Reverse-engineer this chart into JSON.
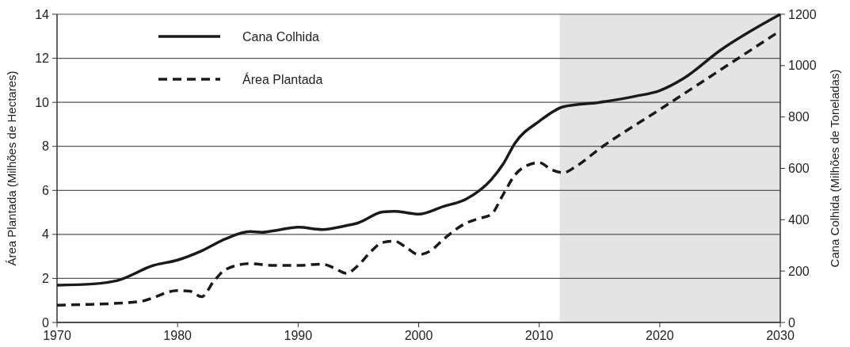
{
  "chart_data": {
    "type": "line",
    "xlabel": null,
    "ylabel": "Área Plantada (Milhões de Hectares)",
    "y2label": "Cana Colhida (Milhões de Toneladas)",
    "xlim": [
      1970,
      2030
    ],
    "xticks": [
      1970,
      1980,
      1990,
      2000,
      2010,
      2020,
      2030
    ],
    "ylim": [
      0,
      14
    ],
    "yticks": [
      0,
      2,
      4,
      6,
      8,
      10,
      12,
      14
    ],
    "y2lim": [
      0,
      1200
    ],
    "y2ticks": [
      0,
      200,
      400,
      600,
      800,
      1000,
      1200
    ],
    "grid": "y",
    "legend": "top left",
    "bands": [
      {
        "axis": "x",
        "from": 2011.7,
        "to": 2030,
        "color": "#e4e4e4"
      }
    ],
    "series": [
      {
        "name": "Cana Colhida",
        "color": "#1a1a1a",
        "axis": "y2",
        "line_style": "solid",
        "x": [
          1970,
          1973,
          1975,
          1978,
          1980,
          1982,
          1984,
          1986,
          1987,
          1988,
          1990,
          1992,
          1994,
          1995,
          1997,
          1998,
          2000,
          2002,
          2004,
          2006,
          2007,
          2008,
          2010,
          2012,
          2015,
          2018,
          2020,
          2022,
          2025,
          2030
        ],
        "values": [
          145,
          150,
          163,
          222,
          243,
          279,
          326,
          354,
          351,
          357,
          371,
          362,
          377,
          388,
          430,
          433,
          422,
          451,
          482,
          555,
          616,
          699,
          783,
          840,
          857,
          881,
          903,
          951,
          1059,
          1200
        ]
      },
      {
        "name": "Área Plantada",
        "color": "#1a1a1a",
        "line_style": "dashed",
        "x": [
          1970,
          1972,
          1975,
          1977,
          1980,
          1981,
          1982,
          1983,
          1984,
          1986,
          1988,
          1990,
          1992,
          1993,
          1994,
          1995,
          1996,
          1997,
          1998,
          1999,
          2000,
          2001,
          2002,
          2004,
          2005,
          2006,
          2007,
          2008,
          2009,
          2010,
          2011,
          2012,
          2013,
          2015,
          2020,
          2025,
          2030
        ],
        "values": [
          0.78,
          0.81,
          0.87,
          0.96,
          1.45,
          1.42,
          1.17,
          1.87,
          2.41,
          2.67,
          2.59,
          2.59,
          2.65,
          2.47,
          2.23,
          2.6,
          3.2,
          3.63,
          3.69,
          3.39,
          3.08,
          3.26,
          3.75,
          4.53,
          4.72,
          4.9,
          5.8,
          6.71,
          7.13,
          7.26,
          6.95,
          6.8,
          7.07,
          7.89,
          9.67,
          11.46,
          13.25
        ]
      }
    ]
  }
}
